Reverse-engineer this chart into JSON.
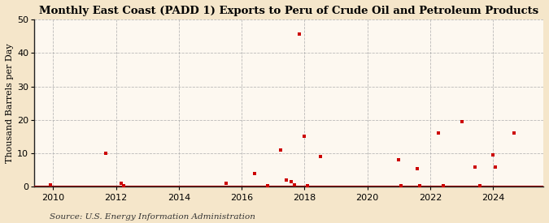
{
  "title": "Monthly East Coast (PADD 1) Exports to Peru of Crude Oil and Petroleum Products",
  "ylabel": "Thousand Barrels per Day",
  "source": "Source: U.S. Energy Information Administration",
  "fig_background_color": "#f5e6ca",
  "plot_background_color": "#fdf8f0",
  "marker_color": "#cc0000",
  "marker_size": 12,
  "marker_shape": "s",
  "ylim": [
    0,
    50
  ],
  "yticks": [
    0,
    10,
    20,
    30,
    40,
    50
  ],
  "xlim_start": 2009.4,
  "xlim_end": 2025.6,
  "xticks": [
    2010,
    2012,
    2014,
    2016,
    2018,
    2020,
    2022,
    2024
  ],
  "data_x": [
    2009.92,
    2011.67,
    2012.17,
    2012.25,
    2015.5,
    2016.42,
    2016.83,
    2017.25,
    2017.42,
    2017.58,
    2017.67,
    2017.83,
    2018.0,
    2018.08,
    2018.5,
    2021.0,
    2021.08,
    2021.58,
    2021.67,
    2022.25,
    2022.42,
    2023.0,
    2023.42,
    2023.58,
    2024.0,
    2024.08,
    2024.67
  ],
  "data_y": [
    0.5,
    10.0,
    1.0,
    0.3,
    1.0,
    4.0,
    0.3,
    11.0,
    2.0,
    1.5,
    0.5,
    45.5,
    15.0,
    0.3,
    9.0,
    8.0,
    0.3,
    5.5,
    0.3,
    16.0,
    0.3,
    19.5,
    6.0,
    0.3,
    9.5,
    6.0,
    16.0
  ],
  "hgrid_color": "#aaaaaa",
  "vgrid_color": "#aaaaaa",
  "hgrid_style": "--",
  "vgrid_style": "--",
  "title_fontsize": 9.5,
  "label_fontsize": 8,
  "tick_fontsize": 8,
  "source_fontsize": 7.5
}
